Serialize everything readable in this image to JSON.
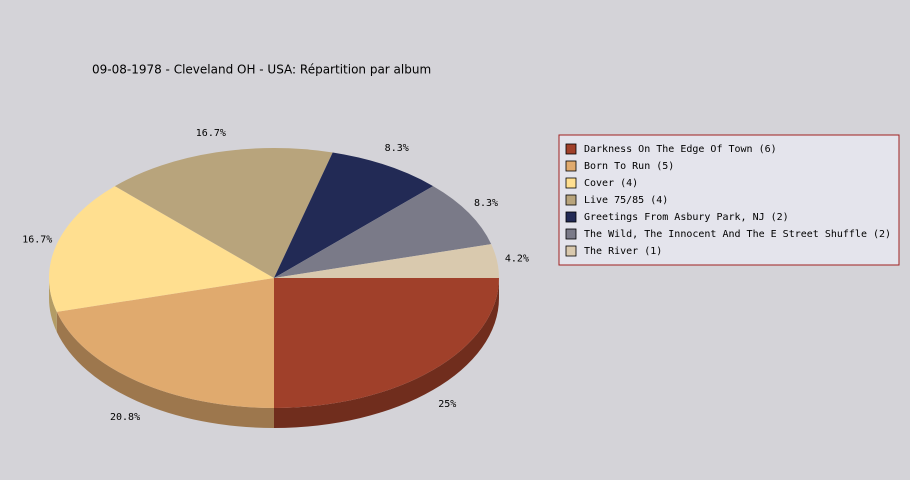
{
  "chart_data": {
    "type": "pie",
    "title": "09-08-1978 - Cleveland OH - USA:  Répartition par album",
    "categories": [
      "Darkness On The Edge Of Town (6)",
      "Born To Run (5)",
      "Cover (4)",
      "Live 75/85 (4)",
      "Greetings From Asbury Park, NJ (2)",
      "The Wild, The Innocent And The E Street Shuffle (2)",
      "The River (1)"
    ],
    "values": [
      25,
      20.8,
      16.7,
      16.7,
      8.3,
      8.3,
      4.2
    ],
    "value_labels": [
      "25%",
      "20.8%",
      "16.7%",
      "16.7%",
      "8.3%",
      "8.3%",
      "4.2%"
    ],
    "colors": [
      "#a0402a",
      "#e0aa6e",
      "#ffdf90",
      "#b8a47c",
      "#222a55",
      "#7a7a88",
      "#d9c9ae"
    ],
    "legend": "right"
  }
}
